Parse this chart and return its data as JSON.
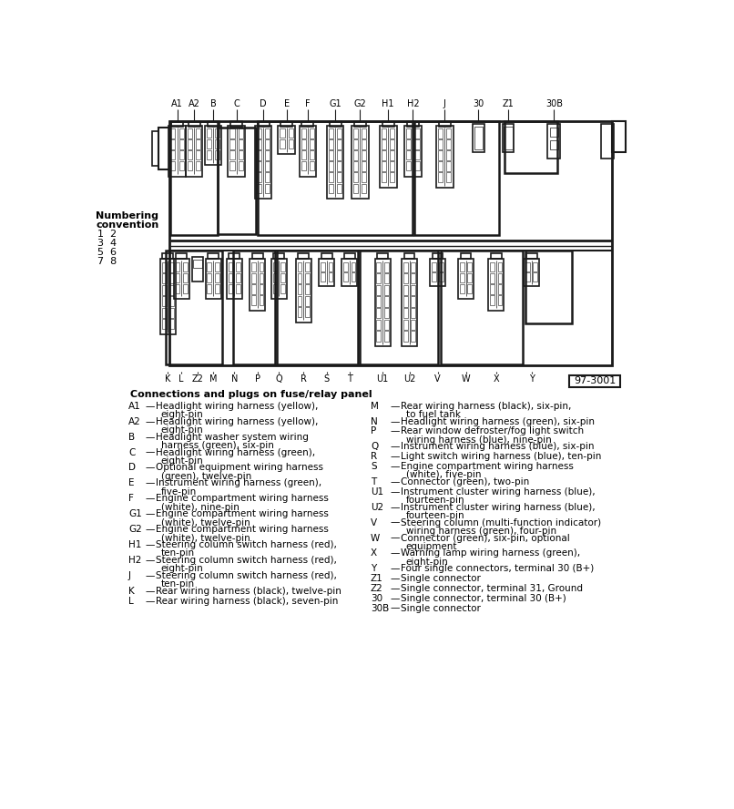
{
  "title": "Connections and plugs on fuse/relay panel",
  "top_labels": [
    "A1",
    "A2",
    "B",
    "C",
    "D",
    "E",
    "F",
    "G1",
    "G2",
    "H1",
    "H2",
    "J",
    "30",
    "Z1",
    "30B"
  ],
  "bottom_labels": [
    "K",
    "L",
    "Z2",
    "M",
    "N",
    "P",
    "Q",
    "R",
    "S",
    "T",
    "U1",
    "U2",
    "V",
    "W",
    "X",
    "Y"
  ],
  "numbering_title": "Numbering",
  "numbering_conv": "convention",
  "numbering_pairs": [
    "1  2",
    "3  4",
    "5  6",
    "7  8"
  ],
  "diagram_id": "97-3001",
  "left_entries": [
    [
      "A1",
      "—",
      "Headlight wiring harness (yellow),",
      "eight-pin"
    ],
    [
      "A2",
      "—",
      "Headlight wiring harness (yellow),",
      "eight-pin"
    ],
    [
      "B",
      "—",
      "Headlight washer system wiring",
      "harness (green), six-pin"
    ],
    [
      "C",
      "—",
      "Headlight wiring harness (green),",
      "eight-pin"
    ],
    [
      "D",
      "—",
      "Optional equipment wiring harness",
      "(green), twelve-pin"
    ],
    [
      "E",
      "—",
      "Instrument wiring harness (green),",
      "five-pin"
    ],
    [
      "F",
      "—",
      "Engine compartment wiring harness",
      "(white), nine-pin"
    ],
    [
      "G1",
      "—",
      "Engine compartment wiring harness",
      "(white), twelve-pin"
    ],
    [
      "G2",
      "—",
      "Engine compartment wiring harness",
      "(white), twelve-pin"
    ],
    [
      "H1",
      "—",
      "Steering column switch harness (red),",
      "ten-pin"
    ],
    [
      "H2",
      "—",
      "Steering column switch harness (red),",
      "eight-pin"
    ],
    [
      "J",
      "—",
      "Steering column switch harness (red),",
      "ten-pin"
    ],
    [
      "K",
      "—",
      "Rear wiring harness (black), twelve-pin",
      ""
    ],
    [
      "L",
      "—",
      "Rear wiring harness (black), seven-pin",
      ""
    ]
  ],
  "right_entries": [
    [
      "M",
      "—",
      "Rear wiring harness (black), six-pin,",
      "to fuel tank"
    ],
    [
      "N",
      "—",
      "Headlight wiring harness (green), six-pin",
      ""
    ],
    [
      "P",
      "—",
      "Rear window defroster/fog light switch",
      "wiring harness (blue), nine-pin"
    ],
    [
      "Q",
      "—",
      "Instrument wiring harness (blue), six-pin",
      ""
    ],
    [
      "R",
      "—",
      "Light switch wiring harness (blue), ten-pin",
      ""
    ],
    [
      "S",
      "—",
      "Engine compartment wiring harness",
      "(white), five-pin"
    ],
    [
      "T",
      "—",
      "Connector (green), two-pin",
      ""
    ],
    [
      "U1",
      "—",
      "Instrument cluster wiring harness (blue),",
      "fourteen-pin"
    ],
    [
      "U2",
      "—",
      "Instrument cluster wiring harness (blue),",
      "fourteen-pin"
    ],
    [
      "V",
      "—",
      "Steering column (multi-function indicator)",
      "wiring harness (green), four-pin"
    ],
    [
      "W",
      "—",
      "Connector (green), six-pin, optional",
      "equipment"
    ],
    [
      "X",
      "—",
      "Warning lamp wiring harness (green),",
      "eight-pin"
    ],
    [
      "Y",
      "—",
      "Four single connectors, terminal 30 (B+)",
      ""
    ],
    [
      "Z1",
      "—",
      "Single connector",
      ""
    ],
    [
      "Z2",
      "—",
      "Single connector, terminal 31, Ground",
      ""
    ],
    [
      "30",
      "—",
      "Single connector, terminal 30 (B+)",
      ""
    ],
    [
      "30B",
      "—",
      "Single connector",
      ""
    ]
  ],
  "bg_color": "#ffffff",
  "text_color": "#000000"
}
